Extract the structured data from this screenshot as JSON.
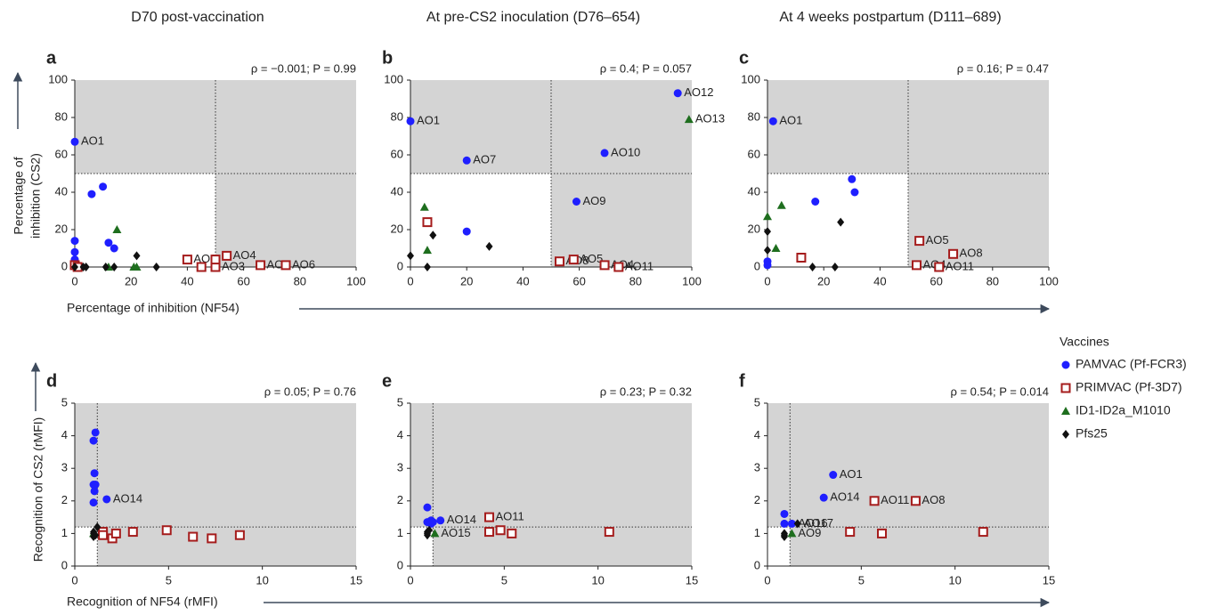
{
  "legend": {
    "title": "Vaccines"
  },
  "chart_data": [
    {
      "type": "scatter",
      "panel": "a",
      "title": "D70 post-vaccination",
      "stats": "ρ = −0.001; P = 0.99",
      "xlabel": "Percentage of inhibition (NF54)",
      "ylabel": [
        "Percentage of",
        "inhibition (CS2)"
      ],
      "xlim": [
        0,
        100
      ],
      "ylim": [
        0,
        100
      ],
      "xticks": [
        0,
        20,
        40,
        60,
        80,
        100
      ],
      "yticks": [
        0,
        20,
        40,
        60,
        80,
        100
      ],
      "threshold_x": 50,
      "threshold_y": 50,
      "series": [
        {
          "name": "PAMVAC (Pf-FCR3)",
          "color": "#1f1fff",
          "marker": "circle",
          "x": [
            0,
            0,
            0,
            0,
            0,
            6,
            10,
            12,
            14
          ],
          "y": [
            67,
            14,
            8,
            4,
            1,
            39,
            43,
            13,
            10
          ],
          "labels": [
            "AO1",
            null,
            null,
            null,
            null,
            null,
            null,
            null,
            null
          ]
        },
        {
          "name": "PRIMVAC (Pf-3D7)",
          "color": "#a51c1c",
          "marker": "square",
          "x": [
            0,
            1,
            40,
            45,
            50,
            50,
            54,
            66,
            75
          ],
          "y": [
            1,
            0,
            4,
            0,
            0,
            4,
            6,
            1,
            1
          ],
          "labels": [
            null,
            null,
            "AO2",
            null,
            "AO3",
            null,
            "AO4",
            "AO5",
            "AO6"
          ]
        },
        {
          "name": "ID1-ID2a_M1010",
          "color": "#1e6e1e",
          "marker": "triangle",
          "x": [
            15,
            12,
            21,
            22
          ],
          "y": [
            20,
            0,
            0,
            0
          ],
          "labels": [
            null,
            null,
            null,
            null
          ]
        },
        {
          "name": "Pfs25",
          "color": "#111111",
          "marker": "diamond",
          "x": [
            0,
            3,
            4,
            11,
            14,
            22,
            29
          ],
          "y": [
            0,
            0,
            0,
            0,
            0,
            6,
            0
          ],
          "labels": [
            null,
            null,
            null,
            null,
            null,
            null,
            null
          ]
        }
      ]
    },
    {
      "type": "scatter",
      "panel": "b",
      "title": "At pre-CS2 inoculation (D76–654)",
      "stats": "ρ = 0.4; P = 0.057",
      "xlim": [
        0,
        100
      ],
      "ylim": [
        0,
        100
      ],
      "xticks": [
        0,
        20,
        40,
        60,
        80,
        100
      ],
      "yticks": [
        0,
        20,
        40,
        60,
        80,
        100
      ],
      "threshold_x": 50,
      "threshold_y": 50,
      "series": [
        {
          "color": "#1f1fff",
          "marker": "circle",
          "x": [
            0,
            20,
            69,
            59,
            20,
            95
          ],
          "y": [
            78,
            57,
            61,
            35,
            19,
            93
          ],
          "labels": [
            "AO1",
            "AO7",
            "AO10",
            "AO9",
            null,
            "AO12"
          ]
        },
        {
          "color": "#a51c1c",
          "marker": "square",
          "x": [
            6,
            53,
            58,
            69,
            74
          ],
          "y": [
            24,
            3,
            4,
            1,
            0
          ],
          "labels": [
            null,
            "AO8",
            "AO5",
            "AO4",
            "AO11"
          ]
        },
        {
          "color": "#1e6e1e",
          "marker": "triangle",
          "x": [
            99,
            5,
            6
          ],
          "y": [
            79,
            32,
            9
          ],
          "labels": [
            "AO13",
            null,
            null
          ]
        },
        {
          "color": "#111111",
          "marker": "diamond",
          "x": [
            0,
            6,
            8,
            28
          ],
          "y": [
            6,
            0,
            17,
            11
          ],
          "labels": [
            null,
            null,
            null,
            null
          ]
        }
      ]
    },
    {
      "type": "scatter",
      "panel": "c",
      "title": "At 4 weeks postpartum (D111–689)",
      "stats": "ρ = 0.16; P = 0.47",
      "xlim": [
        0,
        100
      ],
      "ylim": [
        0,
        100
      ],
      "xticks": [
        0,
        20,
        40,
        60,
        80,
        100
      ],
      "yticks": [
        0,
        20,
        40,
        60,
        80,
        100
      ],
      "threshold_x": 50,
      "threshold_y": 50,
      "series": [
        {
          "color": "#1f1fff",
          "marker": "circle",
          "x": [
            2,
            30,
            31,
            17,
            0,
            0
          ],
          "y": [
            78,
            47,
            40,
            35,
            3,
            1
          ],
          "labels": [
            "AO1",
            null,
            null,
            null,
            null,
            null
          ]
        },
        {
          "color": "#a51c1c",
          "marker": "square",
          "x": [
            12,
            54,
            53,
            66,
            61
          ],
          "y": [
            5,
            14,
            1,
            7,
            0
          ],
          "labels": [
            null,
            "AO5",
            "AO4",
            "AO8",
            "AO11"
          ]
        },
        {
          "color": "#1e6e1e",
          "marker": "triangle",
          "x": [
            0,
            5,
            3
          ],
          "y": [
            27,
            33,
            10
          ],
          "labels": [
            null,
            null,
            null
          ]
        },
        {
          "color": "#111111",
          "marker": "diamond",
          "x": [
            0,
            0,
            16,
            24,
            26
          ],
          "y": [
            19,
            9,
            0,
            0,
            24
          ],
          "labels": [
            null,
            null,
            null,
            null,
            null
          ]
        }
      ]
    },
    {
      "type": "scatter",
      "panel": "d",
      "stats": "ρ = 0.05; P = 0.76",
      "xlabel": "Recognition of NF54 (rMFI)",
      "ylabel": [
        "Recognition of CS2 (rMFI)"
      ],
      "xlim": [
        0,
        15
      ],
      "ylim": [
        0,
        5
      ],
      "xticks": [
        0,
        5,
        10,
        15
      ],
      "yticks": [
        0,
        1,
        2,
        3,
        4,
        5
      ],
      "threshold_x": 1.2,
      "threshold_y": 1.2,
      "series": [
        {
          "color": "#1f1fff",
          "marker": "circle",
          "x": [
            1.1,
            1,
            1.05,
            1,
            1.1,
            1.05,
            1,
            1.7
          ],
          "y": [
            4.1,
            3.85,
            2.85,
            2.5,
            2.5,
            2.3,
            1.95,
            2.05
          ],
          "labels": [
            null,
            null,
            null,
            null,
            null,
            null,
            null,
            "AO14"
          ]
        },
        {
          "color": "#a51c1c",
          "marker": "square",
          "x": [
            1.5,
            1.5,
            2,
            2.2,
            3.1,
            4.9,
            6.3,
            7.3,
            8.8
          ],
          "y": [
            1.05,
            0.95,
            0.85,
            1,
            1.05,
            1.1,
            0.9,
            0.85,
            0.95
          ],
          "labels": [
            null,
            null,
            null,
            null,
            null,
            null,
            null,
            null,
            null
          ]
        },
        {
          "color": "#1e6e1e",
          "marker": "triangle",
          "x": [
            1
          ],
          "y": [
            1
          ],
          "labels": [
            null
          ]
        },
        {
          "color": "#111111",
          "marker": "diamond",
          "x": [
            1,
            1,
            1,
            1.2,
            1.1
          ],
          "y": [
            0.9,
            1,
            1.05,
            1.2,
            0.95
          ],
          "labels": [
            null,
            null,
            null,
            null,
            null
          ]
        }
      ]
    },
    {
      "type": "scatter",
      "panel": "e",
      "stats": "ρ = 0.23; P = 0.32",
      "xlim": [
        0,
        15
      ],
      "ylim": [
        0,
        5
      ],
      "xticks": [
        0,
        5,
        10,
        15
      ],
      "yticks": [
        0,
        1,
        2,
        3,
        4,
        5
      ],
      "threshold_x": 1.2,
      "threshold_y": 1.2,
      "series": [
        {
          "color": "#1f1fff",
          "marker": "circle",
          "x": [
            0.9,
            0.9,
            1.1,
            1.1,
            1.6,
            1.2
          ],
          "y": [
            1.8,
            1.35,
            1.4,
            1.3,
            1.4,
            1.35
          ],
          "labels": [
            null,
            null,
            null,
            null,
            "AO14",
            null
          ]
        },
        {
          "color": "#a51c1c",
          "marker": "square",
          "x": [
            4.2,
            4.2,
            4.8,
            5.4,
            10.6
          ],
          "y": [
            1.5,
            1.05,
            1.1,
            1,
            1.05
          ],
          "labels": [
            "AO11",
            null,
            null,
            null,
            null
          ]
        },
        {
          "color": "#1e6e1e",
          "marker": "triangle",
          "x": [
            1.3
          ],
          "y": [
            1
          ],
          "labels": [
            "AO15"
          ]
        },
        {
          "color": "#111111",
          "marker": "diamond",
          "x": [
            0.9,
            0.9,
            0.9,
            1
          ],
          "y": [
            1,
            1.05,
            0.95,
            1.1
          ],
          "labels": [
            null,
            null,
            null,
            null
          ]
        }
      ]
    },
    {
      "type": "scatter",
      "panel": "f",
      "stats": "ρ = 0.54; P = 0.014",
      "xlim": [
        0,
        15
      ],
      "ylim": [
        0,
        5
      ],
      "xticks": [
        0,
        5,
        10,
        15
      ],
      "yticks": [
        0,
        1,
        2,
        3,
        4,
        5
      ],
      "threshold_x": 1.2,
      "threshold_y": 1.2,
      "series": [
        {
          "color": "#1f1fff",
          "marker": "circle",
          "x": [
            3.5,
            3,
            0.9,
            0.9,
            1.3
          ],
          "y": [
            2.8,
            2.1,
            1.6,
            1.3,
            1.3
          ],
          "labels": [
            "AO1",
            "AO14",
            null,
            null,
            "AO16"
          ]
        },
        {
          "color": "#a51c1c",
          "marker": "square",
          "x": [
            5.7,
            7.9,
            4.4,
            6.1,
            11.5
          ],
          "y": [
            2,
            2,
            1.05,
            1,
            1.05
          ],
          "labels": [
            "AO11",
            "AO8",
            null,
            null,
            null
          ]
        },
        {
          "color": "#1e6e1e",
          "marker": "triangle",
          "x": [
            1.3
          ],
          "y": [
            1
          ],
          "labels": [
            "AO9"
          ]
        },
        {
          "color": "#111111",
          "marker": "diamond",
          "x": [
            1.6,
            0.9,
            0.9,
            0.9
          ],
          "y": [
            1.3,
            0.9,
            1,
            0.95
          ],
          "labels": [
            "AO17",
            null,
            null,
            null
          ]
        }
      ]
    }
  ]
}
